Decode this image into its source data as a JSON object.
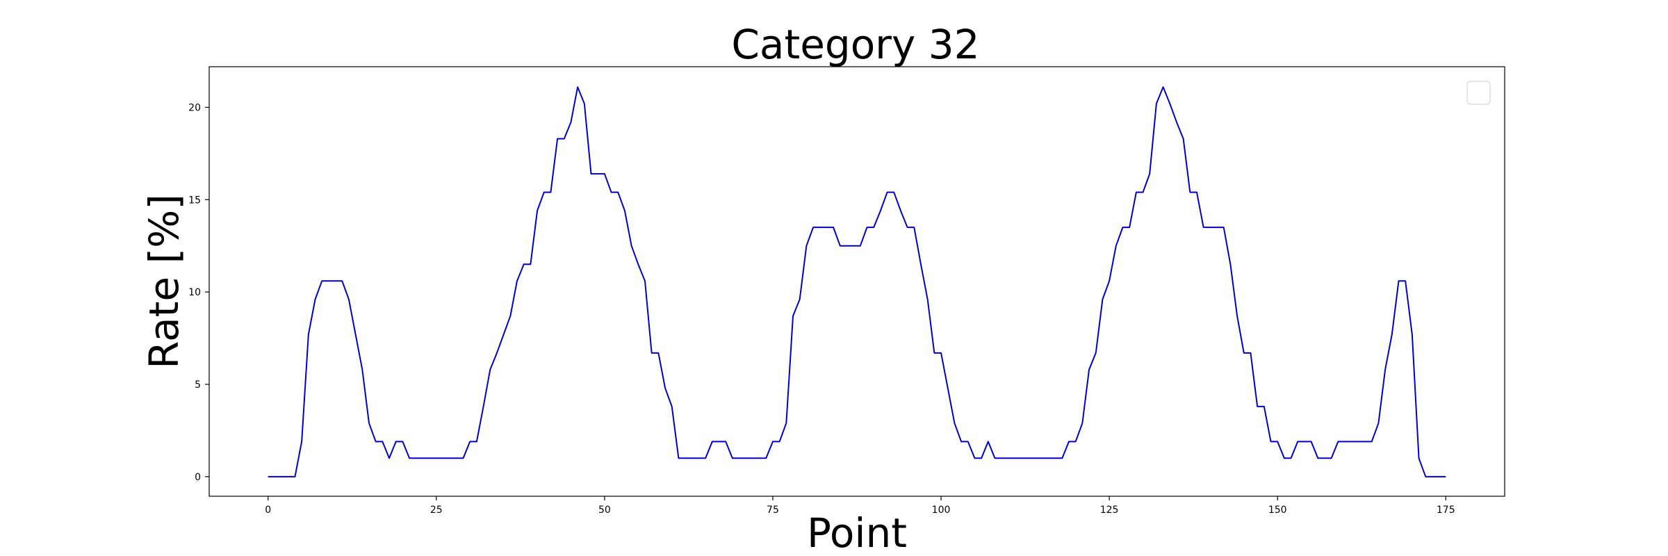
{
  "chart_data": {
    "type": "line",
    "title": "Category 32",
    "xlabel": "Point",
    "ylabel": "Rate [%]",
    "xlim": [
      -8.75,
      183.75
    ],
    "ylim": [
      -1.06,
      22.2
    ],
    "xticks": [
      0,
      25,
      50,
      75,
      100,
      125,
      150,
      175
    ],
    "yticks": [
      0,
      5,
      10,
      15,
      20
    ],
    "grid": false,
    "legend": "top-right",
    "line_color": "#0000cc",
    "series": [
      {
        "x": [
          0,
          1,
          2,
          3,
          4,
          5,
          6,
          7,
          8,
          9,
          10,
          11,
          12,
          13,
          14,
          15,
          16,
          17,
          18,
          19,
          20,
          21,
          22,
          23,
          24,
          25,
          26,
          27,
          28,
          29,
          30,
          31,
          32,
          33,
          34,
          35,
          36,
          37,
          38,
          39,
          40,
          41,
          42,
          43,
          44,
          45,
          46,
          47,
          48,
          49,
          50,
          51,
          52,
          53,
          54,
          55,
          56,
          57,
          58,
          59,
          60,
          61,
          62,
          63,
          64,
          65,
          66,
          67,
          68,
          69,
          70,
          71,
          72,
          73,
          74,
          75,
          76,
          77,
          78,
          79,
          80,
          81,
          82,
          83,
          84,
          85,
          86,
          87,
          88,
          89,
          90,
          91,
          92,
          93,
          94,
          95,
          96,
          97,
          98,
          99,
          100,
          101,
          102,
          103,
          104,
          105,
          106,
          107,
          108,
          109,
          110,
          111,
          112,
          113,
          114,
          115,
          116,
          117,
          118,
          119,
          120,
          121,
          122,
          123,
          124,
          125,
          126,
          127,
          128,
          129,
          130,
          131,
          132,
          133,
          134,
          135,
          136,
          137,
          138,
          139,
          140,
          141,
          142,
          143,
          144,
          145,
          146,
          147,
          148,
          149,
          150,
          151,
          152,
          153,
          154,
          155,
          156,
          157,
          158,
          159,
          160,
          161,
          162,
          163,
          164,
          165,
          166,
          167,
          168,
          169,
          170,
          171,
          172,
          173,
          174,
          175
        ],
        "values": [
          0,
          0,
          0,
          0,
          0,
          1.9,
          7.7,
          9.6,
          10.6,
          10.6,
          10.6,
          10.6,
          9.6,
          7.7,
          5.8,
          2.9,
          1.9,
          1.9,
          1.0,
          1.9,
          1.9,
          1.0,
          1.0,
          1.0,
          1.0,
          1.0,
          1.0,
          1.0,
          1.0,
          1.0,
          1.9,
          1.9,
          3.8,
          5.8,
          6.7,
          7.7,
          8.7,
          10.6,
          11.5,
          11.5,
          14.4,
          15.4,
          15.4,
          18.3,
          18.3,
          19.2,
          21.1,
          20.2,
          16.4,
          16.4,
          16.4,
          15.4,
          15.4,
          14.4,
          12.5,
          11.5,
          10.6,
          6.7,
          6.7,
          4.8,
          3.8,
          1.0,
          1.0,
          1.0,
          1.0,
          1.0,
          1.9,
          1.9,
          1.9,
          1.0,
          1.0,
          1.0,
          1.0,
          1.0,
          1.0,
          1.9,
          1.9,
          2.9,
          8.7,
          9.6,
          12.5,
          13.5,
          13.5,
          13.5,
          13.5,
          12.5,
          12.5,
          12.5,
          12.5,
          13.5,
          13.5,
          14.4,
          15.4,
          15.4,
          14.4,
          13.5,
          13.5,
          11.5,
          9.6,
          6.7,
          6.7,
          4.8,
          2.9,
          1.9,
          1.9,
          1.0,
          1.0,
          1.9,
          1.0,
          1.0,
          1.0,
          1.0,
          1.0,
          1.0,
          1.0,
          1.0,
          1.0,
          1.0,
          1.0,
          1.9,
          1.9,
          2.9,
          5.8,
          6.7,
          9.6,
          10.6,
          12.5,
          13.5,
          13.5,
          15.4,
          15.4,
          16.4,
          20.2,
          21.1,
          20.2,
          19.2,
          18.3,
          15.4,
          15.4,
          13.5,
          13.5,
          13.5,
          13.5,
          11.5,
          8.7,
          6.7,
          6.7,
          3.8,
          3.8,
          1.9,
          1.9,
          1.0,
          1.0,
          1.9,
          1.9,
          1.9,
          1.0,
          1.0,
          1.0,
          1.9,
          1.9,
          1.9,
          1.9,
          1.9,
          1.9,
          2.9,
          5.8,
          7.7,
          10.6,
          10.6,
          7.7,
          1.0,
          0,
          0,
          0,
          0
        ]
      }
    ]
  }
}
